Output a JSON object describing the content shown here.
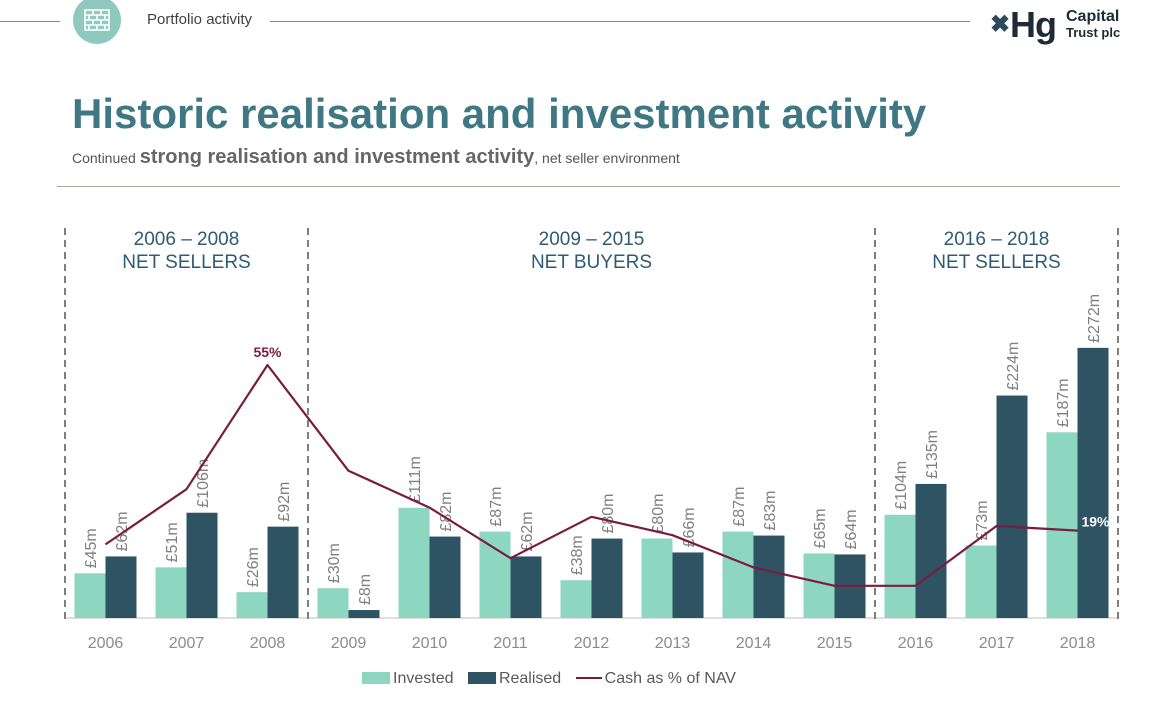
{
  "header": {
    "section_label": "Portfolio activity",
    "logo_capital": "Capital",
    "logo_trust": "Trust plc",
    "logo_hg": "Hg",
    "logo_mark": "✖"
  },
  "page_title": "Historic realisation and investment activity",
  "subtitle": {
    "prefix": "Continued ",
    "emphasis": "strong realisation and investment activity",
    "suffix": ", net seller environment"
  },
  "colors": {
    "invested": "#8dd6c0",
    "realised": "#2e5363",
    "cash_line": "#7a1c3f",
    "title": "#3f7884",
    "period_text": "#2e5b74",
    "divider": "#7f7f7f"
  },
  "chart_data": {
    "type": "bar",
    "categories": [
      "2006",
      "2007",
      "2008",
      "2009",
      "2010",
      "2011",
      "2012",
      "2013",
      "2014",
      "2015",
      "2016",
      "2017",
      "2018"
    ],
    "series": [
      {
        "name": "Invested",
        "values": [
          45,
          51,
          26,
          30,
          111,
          87,
          38,
          80,
          87,
          65,
          104,
          73,
          187
        ],
        "labels": [
          "£45m",
          "£51m",
          "£26m",
          "£30m",
          "£111m",
          "£87m",
          "£38m",
          "£80m",
          "£87m",
          "£65m",
          "£104m",
          "£73m",
          "£187m"
        ]
      },
      {
        "name": "Realised",
        "values": [
          62,
          106,
          92,
          8,
          82,
          62,
          80,
          66,
          83,
          64,
          135,
          224,
          272
        ],
        "labels": [
          "£62m",
          "£106m",
          "£92m",
          "£8m",
          "£82m",
          "£62m",
          "£80m",
          "£66m",
          "£83m",
          "£64m",
          "£135m",
          "£224m",
          "£272m"
        ]
      },
      {
        "name": "Cash as % of NAV",
        "type": "line",
        "values": [
          16,
          28,
          55,
          32,
          24,
          13,
          22,
          18,
          11,
          7,
          7,
          20,
          19
        ],
        "point_labels": {
          "2008": "55%",
          "2018": "19%"
        }
      }
    ],
    "periods": [
      {
        "years": "2006 – 2008",
        "label": "NET SELLERS",
        "from": "2006",
        "to": "2008"
      },
      {
        "years": "2009 – 2015",
        "label": "NET BUYERS",
        "from": "2009",
        "to": "2015"
      },
      {
        "years": "2016 – 2018",
        "label": "NET SELLERS",
        "from": "2016",
        "to": "2018"
      }
    ],
    "ylim": [
      0,
      290
    ],
    "line_ylim": [
      0,
      80
    ],
    "grid": false,
    "legend_position": "bottom"
  }
}
